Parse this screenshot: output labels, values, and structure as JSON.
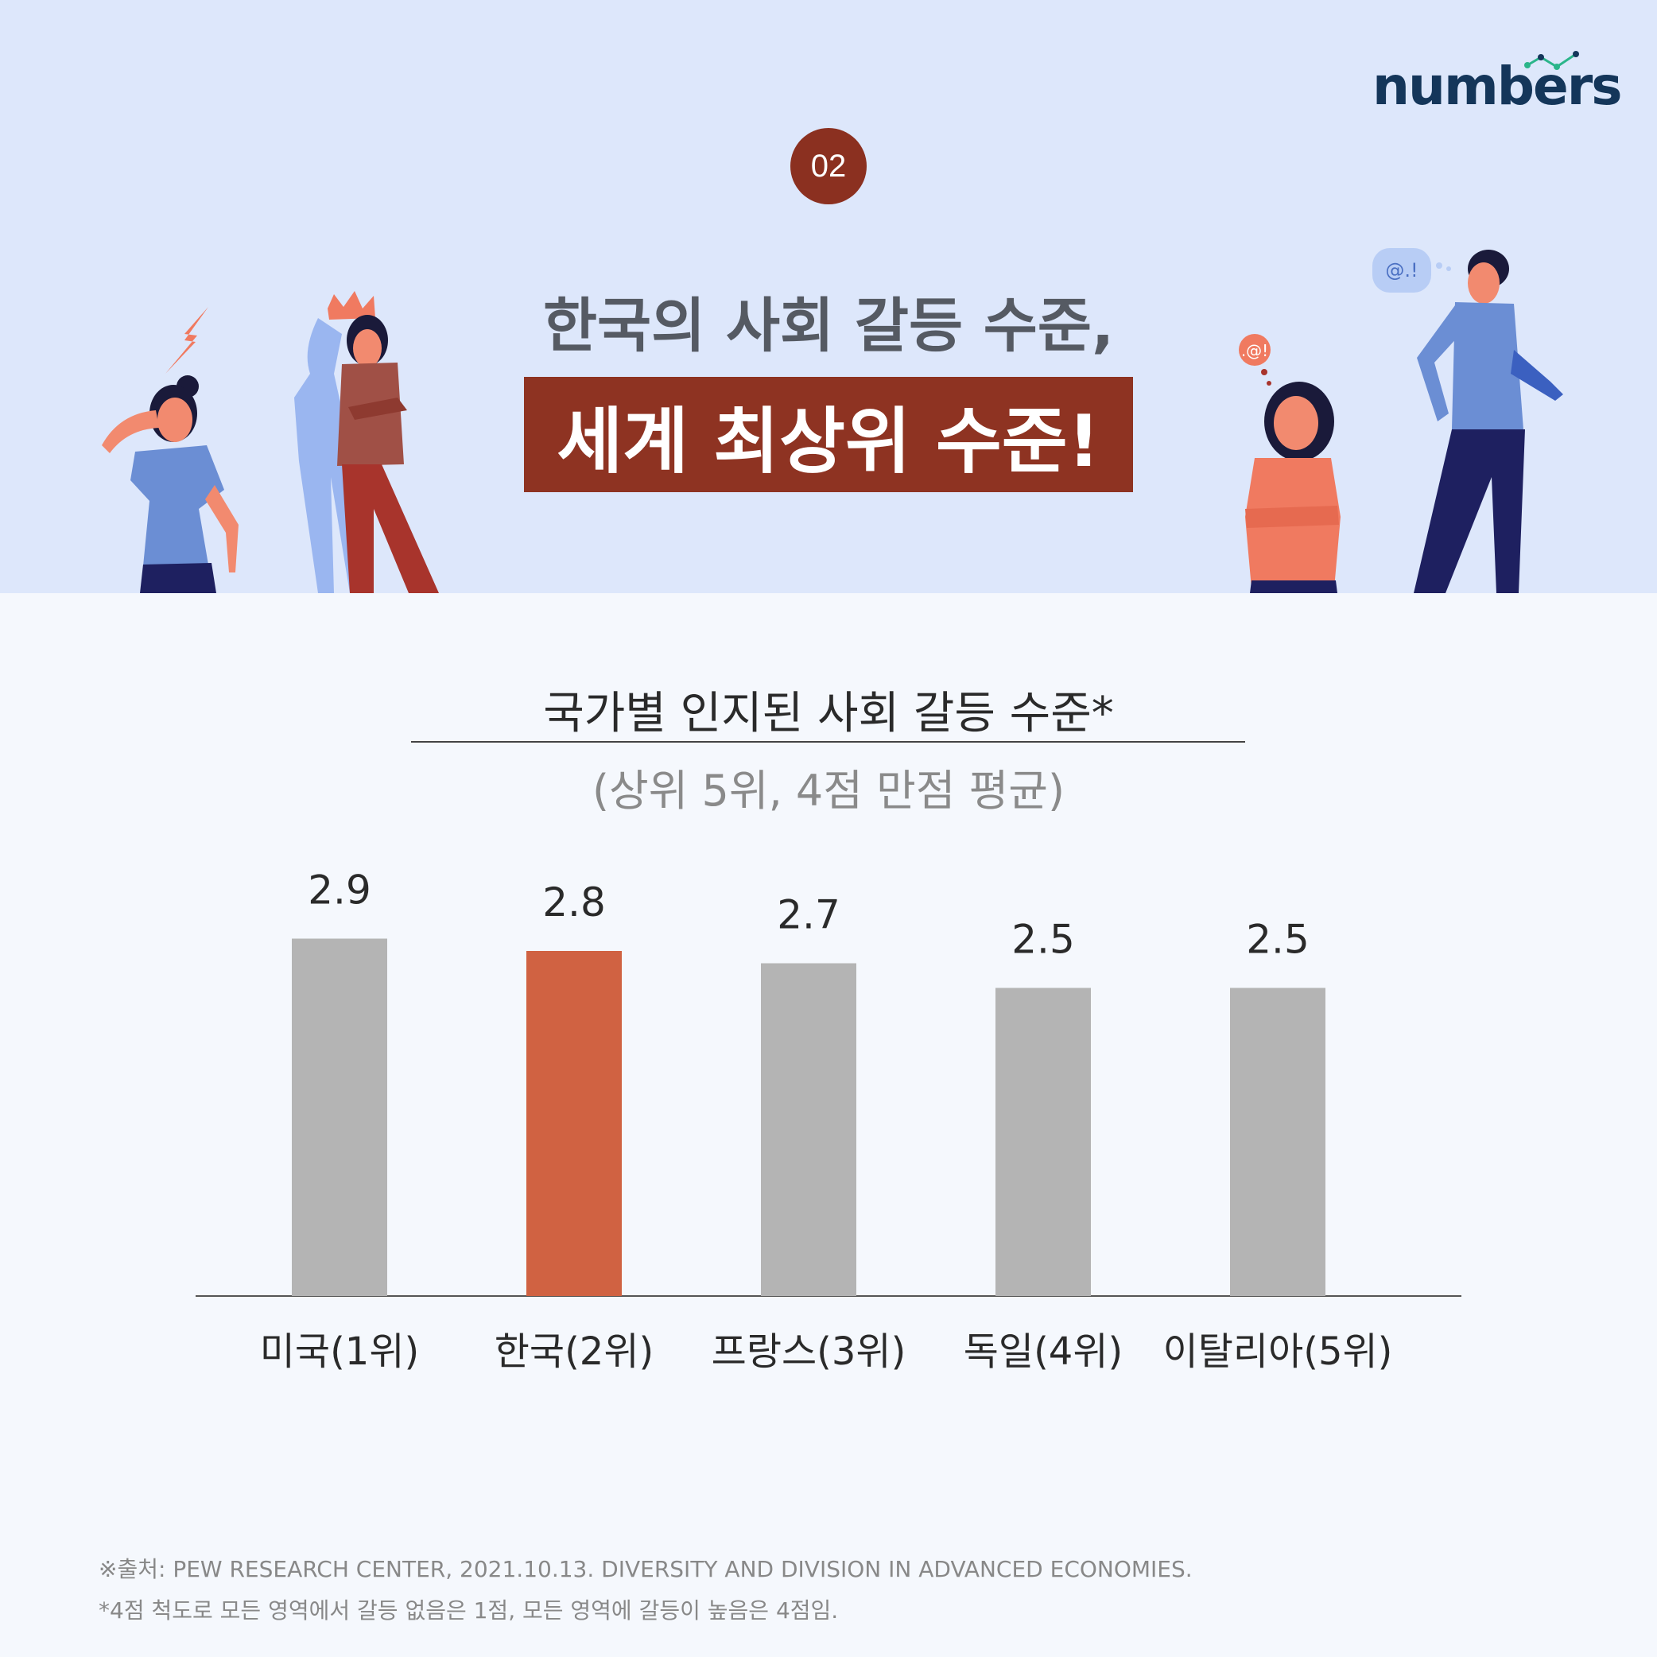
{
  "brand": {
    "logo_text": "numbers",
    "accent": "#2bb58a",
    "dark": "#14365a"
  },
  "badge": {
    "number": "02"
  },
  "headline": {
    "line1": "한국의 사회 갈등 수준,",
    "line2": "세계 최상위 수준!"
  },
  "bubbles": {
    "man": "@.!",
    "woman": ".@!"
  },
  "colors": {
    "highlight_bar": "#d06242",
    "default_bar": "#b4b4b4",
    "header_bg": "#dde7fb",
    "badge_bg": "#8b3020"
  },
  "chart_data": {
    "type": "bar",
    "title": "국가별 인지된 사회 갈등 수준*",
    "subtitle": "(상위 5위, 4점 만점 평균)",
    "categories": [
      "미국(1위)",
      "한국(2위)",
      "프랑스(3위)",
      "독일(4위)",
      "이탈리아(5위)"
    ],
    "values": [
      2.9,
      2.8,
      2.7,
      2.5,
      2.5
    ],
    "value_labels": [
      "2.9",
      "2.8",
      "2.7",
      "2.5",
      "2.5"
    ],
    "highlight_index": 1,
    "grid": false,
    "legend": "none"
  },
  "sources": {
    "line1": "※출처: PEW RESEARCH CENTER, 2021.10.13. DIVERSITY AND DIVISION IN ADVANCED ECONOMIES.",
    "line2": "*4점 척도로 모든 영역에서 갈등 없음은 1점, 모든 영역에 갈등이 높음은 4점임."
  }
}
